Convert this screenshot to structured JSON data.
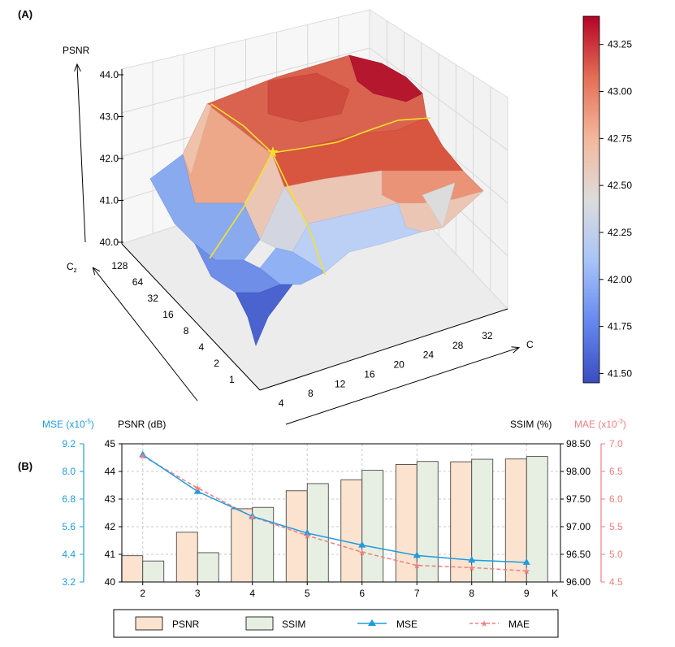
{
  "panel_a": {
    "label": "(A)",
    "z_label": "PSNR",
    "cz_label": "C",
    "cz_sub": "z",
    "c_label": "C",
    "z_ticks": [
      "40.0",
      "41.0",
      "42.0",
      "43.0",
      "44.0"
    ],
    "cz_ticks": [
      "1",
      "2",
      "4",
      "8",
      "16",
      "32",
      "64",
      "128"
    ],
    "c_ticks": [
      "4",
      "8",
      "12",
      "16",
      "20",
      "24",
      "28",
      "32"
    ],
    "colorbar": {
      "ticks": [
        "41.50",
        "41.75",
        "42.00",
        "42.25",
        "42.50",
        "42.75",
        "43.00",
        "43.25"
      ],
      "range": [
        41.45,
        43.4
      ],
      "colors": [
        "#3b4cc0",
        "#6688ee",
        "#a8c4f8",
        "#dddcdc",
        "#f4b89c",
        "#e46e56",
        "#b40426"
      ]
    }
  },
  "panel_b": {
    "label": "(B)",
    "mse_label": "MSE (x10",
    "mse_exp": "-5",
    "mse_close": ")",
    "psnr_label": "PSNR (dB)",
    "ssim_label": "SSIM (%)",
    "mae_label": "MAE (x10",
    "mae_exp": "-3",
    "mae_close": ")",
    "x_axis_label": "K",
    "legend": {
      "psnr": "PSNR",
      "ssim": "SSIM",
      "mse": "MSE",
      "mae": "MAE"
    },
    "colors": {
      "psnr_fill": "#fbe3d0",
      "ssim_fill": "#e6efe2",
      "mse": "#1f9bde",
      "mae": "#f07f7f"
    }
  },
  "chart_data": [
    {
      "type": "surface3d",
      "title": "(A)",
      "xlabel": "C",
      "ylabel": "Cz",
      "zlabel": "PSNR",
      "x": [
        4,
        8,
        12,
        16,
        20,
        24,
        28,
        32
      ],
      "y": [
        1,
        2,
        4,
        8,
        16,
        32,
        64,
        128
      ],
      "zlim": [
        40.0,
        44.0
      ],
      "optimum": {
        "C": 8,
        "Cz": 32,
        "psnr": 42.3
      },
      "colorbar_range": [
        41.5,
        43.3
      ]
    },
    {
      "type": "bar",
      "title": "(B)",
      "xlabel": "K",
      "categories": [
        "2",
        "3",
        "4",
        "5",
        "6",
        "7",
        "8",
        "9"
      ],
      "series": [
        {
          "name": "PSNR",
          "axis": "left",
          "unit": "dB",
          "values": [
            40.95,
            41.8,
            42.65,
            43.3,
            43.7,
            44.25,
            44.35,
            44.45
          ]
        },
        {
          "name": "SSIM",
          "axis": "right",
          "unit": "%",
          "values": [
            96.38,
            96.53,
            97.35,
            97.78,
            98.02,
            98.18,
            98.22,
            98.27
          ]
        },
        {
          "name": "MSE",
          "type": "line",
          "axis": "far-left",
          "unit": "x10^-5",
          "values": [
            8.72,
            7.13,
            6.05,
            5.32,
            4.8,
            4.35,
            4.15,
            4.05
          ]
        },
        {
          "name": "MAE",
          "type": "line",
          "axis": "far-right",
          "unit": "x10^-3",
          "values": [
            6.78,
            6.2,
            5.68,
            5.34,
            5.04,
            4.8,
            4.76,
            4.7
          ]
        }
      ],
      "axes": {
        "psnr": {
          "range": [
            40,
            45
          ],
          "ticks": [
            "40",
            "41",
            "42",
            "43",
            "44",
            "45"
          ]
        },
        "mse": {
          "range": [
            3.2,
            9.2
          ],
          "ticks": [
            "3.2",
            "4.4",
            "5.6",
            "6.8",
            "8.0",
            "9.2"
          ]
        },
        "ssim": {
          "range": [
            96.0,
            98.5
          ],
          "ticks": [
            "96.00",
            "96.50",
            "97.00",
            "97.50",
            "98.00",
            "98.50"
          ]
        },
        "mae": {
          "range": [
            4.5,
            7.0
          ],
          "ticks": [
            "4.5",
            "5.0",
            "5.5",
            "6.0",
            "6.5",
            "7.0"
          ]
        }
      },
      "legend_position": "bottom-center"
    }
  ]
}
